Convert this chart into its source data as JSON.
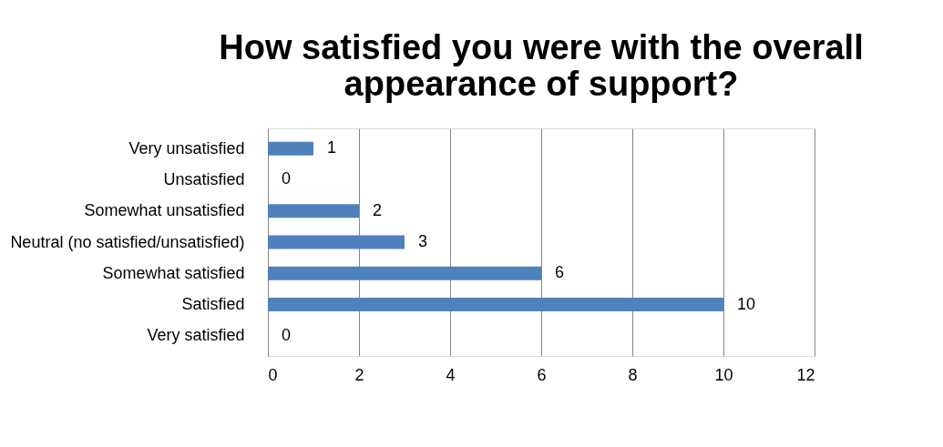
{
  "chart_data": {
    "type": "bar",
    "orientation": "horizontal",
    "title": "How satisfied you were with the overall appearance of support?",
    "categories": [
      "Very unsatisfied",
      "Unsatisfied",
      "Somewhat unsatisfied",
      "Neutral (no satisfied/unsatisfied)",
      "Somewhat satisfied",
      "Satisfied",
      "Very satisfied"
    ],
    "values": [
      1,
      0,
      2,
      3,
      6,
      10,
      0
    ],
    "color": "#4f81bd",
    "xlim": [
      0,
      12
    ],
    "xticks": [
      0,
      2,
      4,
      6,
      8,
      10,
      12
    ],
    "grid": "x",
    "data_labels": true
  }
}
